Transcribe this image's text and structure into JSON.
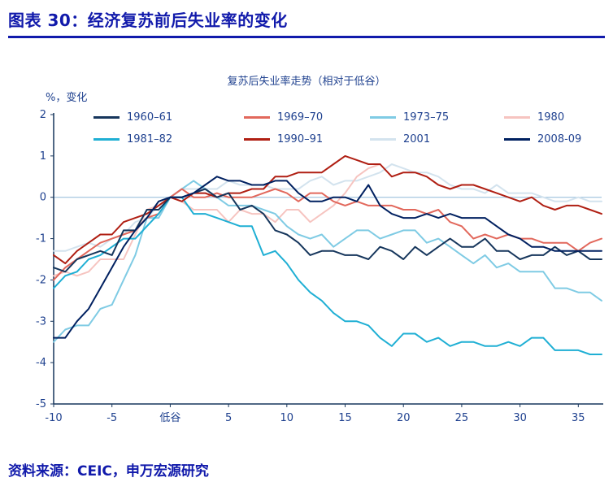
{
  "header": {
    "title": "图表 30：经济复苏前后失业率的变化"
  },
  "footer": {
    "source": "资料来源：CEIC，申万宏源研究"
  },
  "colors": {
    "accent_blue": "#111AAB",
    "axis_text": "#1F418F",
    "axis_line": "#17365D",
    "zero_line": "#8FB8D8"
  },
  "chart_data": {
    "type": "line",
    "title": "复苏后失业率走势（相对于低谷）",
    "ylabel": "%，变化",
    "xlabel": "",
    "xlim": [
      -10,
      37
    ],
    "ylim": [
      -5,
      2
    ],
    "grid": false,
    "legend_position": "top-inside",
    "x_start": -10,
    "x_step": 1,
    "x_ticks": [
      {
        "value": -10,
        "label": "-10"
      },
      {
        "value": -5,
        "label": "-5"
      },
      {
        "value": 0,
        "label": "低谷"
      },
      {
        "value": 5,
        "label": "5"
      },
      {
        "value": 10,
        "label": "10"
      },
      {
        "value": 15,
        "label": "15"
      },
      {
        "value": 20,
        "label": "20"
      },
      {
        "value": 25,
        "label": "25"
      },
      {
        "value": 30,
        "label": "30"
      },
      {
        "value": 35,
        "label": "35"
      }
    ],
    "y_ticks": [
      {
        "value": 2,
        "label": "2"
      },
      {
        "value": 1,
        "label": "1"
      },
      {
        "value": 0,
        "label": "0"
      },
      {
        "value": -1,
        "label": "-1"
      },
      {
        "value": -2,
        "label": "-2"
      },
      {
        "value": -3,
        "label": "-3"
      },
      {
        "value": -4,
        "label": "-4"
      },
      {
        "value": -5,
        "label": "-5"
      }
    ],
    "legend_rows": [
      [
        "1960–61",
        "1969–70",
        "1973–75",
        "1980"
      ],
      [
        "1981–82",
        "1990–91",
        "2001",
        "2008-09"
      ]
    ],
    "series": [
      {
        "name": "1960–61",
        "color": "#16365C",
        "values": [
          -1.7,
          -1.8,
          -1.5,
          -1.4,
          -1.3,
          -1.4,
          -0.8,
          -0.8,
          -0.3,
          -0.3,
          0,
          0,
          0.1,
          0.2,
          0,
          0.1,
          -0.3,
          -0.2,
          -0.4,
          -0.8,
          -0.9,
          -1.1,
          -1.4,
          -1.3,
          -1.3,
          -1.4,
          -1.4,
          -1.5,
          -1.2,
          -1.3,
          -1.5,
          -1.2,
          -1.4,
          -1.2,
          -1.0,
          -1.2,
          -1.2,
          -1.0,
          -1.3,
          -1.3,
          -1.5,
          -1.4,
          -1.4,
          -1.2,
          -1.4,
          -1.3,
          -1.5,
          -1.5
        ]
      },
      {
        "name": "1969–70",
        "color": "#E2685C",
        "values": [
          -2.0,
          -1.7,
          -1.5,
          -1.3,
          -1.1,
          -1.0,
          -0.9,
          -0.8,
          -0.5,
          -0.4,
          0,
          0.2,
          0,
          0,
          0.1,
          0,
          0,
          0,
          0.1,
          0.2,
          0.1,
          -0.1,
          0.1,
          0.1,
          -0.1,
          -0.2,
          -0.1,
          -0.2,
          -0.2,
          -0.2,
          -0.3,
          -0.3,
          -0.4,
          -0.3,
          -0.6,
          -0.7,
          -1.0,
          -0.9,
          -1.0,
          -0.9,
          -1.0,
          -1.0,
          -1.1,
          -1.1,
          -1.1,
          -1.3,
          -1.1,
          -1.0
        ]
      },
      {
        "name": "1973–75",
        "color": "#7FCBE4",
        "values": [
          -3.5,
          -3.2,
          -3.1,
          -3.1,
          -2.7,
          -2.6,
          -2.0,
          -1.4,
          -0.5,
          -0.5,
          0,
          0.2,
          0.4,
          0.2,
          0,
          -0.2,
          -0.2,
          -0.2,
          -0.3,
          -0.4,
          -0.7,
          -0.9,
          -1.0,
          -0.9,
          -1.2,
          -1.0,
          -0.8,
          -0.8,
          -1.0,
          -0.9,
          -0.8,
          -0.8,
          -1.1,
          -1.0,
          -1.2,
          -1.4,
          -1.6,
          -1.4,
          -1.7,
          -1.6,
          -1.8,
          -1.8,
          -1.8,
          -2.2,
          -2.2,
          -2.3,
          -2.3,
          -2.5
        ]
      },
      {
        "name": "1980",
        "color": "#F6C4C0",
        "values": [
          -1.9,
          -1.8,
          -1.9,
          -1.8,
          -1.5,
          -1.5,
          -1.5,
          -0.9,
          -0.3,
          -0.2,
          0,
          -0.1,
          -0.3,
          -0.3,
          -0.3,
          -0.6,
          -0.3,
          -0.4,
          -0.4,
          -0.6,
          -0.3,
          -0.3,
          -0.6,
          -0.4,
          -0.2,
          0.1,
          0.5,
          0.7,
          0.8,
          null,
          null,
          null,
          null,
          null,
          null,
          null,
          null,
          null,
          null,
          null,
          null,
          null,
          null,
          null,
          null,
          null,
          null,
          null
        ]
      },
      {
        "name": "1981–82",
        "color": "#1FAFD4",
        "values": [
          -2.2,
          -1.9,
          -1.8,
          -1.5,
          -1.4,
          -1.2,
          -1.0,
          -1.0,
          -0.7,
          -0.4,
          0,
          0,
          -0.4,
          -0.4,
          -0.5,
          -0.6,
          -0.7,
          -0.7,
          -1.4,
          -1.3,
          -1.6,
          -2.0,
          -2.3,
          -2.5,
          -2.8,
          -3.0,
          -3.0,
          -3.1,
          -3.4,
          -3.6,
          -3.3,
          -3.3,
          -3.5,
          -3.4,
          -3.6,
          -3.5,
          -3.5,
          -3.6,
          -3.6,
          -3.5,
          -3.6,
          -3.4,
          -3.4,
          -3.7,
          -3.7,
          -3.7,
          -3.8,
          -3.8
        ]
      },
      {
        "name": "1990–91",
        "color": "#B01F13",
        "values": [
          -1.4,
          -1.6,
          -1.3,
          -1.1,
          -0.9,
          -0.9,
          -0.6,
          -0.5,
          -0.4,
          -0.2,
          0,
          -0.1,
          0.1,
          0.1,
          0,
          0.1,
          0.1,
          0.2,
          0.2,
          0.5,
          0.5,
          0.6,
          0.6,
          0.6,
          0.8,
          1.0,
          0.9,
          0.8,
          0.8,
          0.5,
          0.6,
          0.6,
          0.5,
          0.3,
          0.2,
          0.3,
          0.3,
          0.2,
          0.1,
          0,
          -0.1,
          0,
          -0.2,
          -0.3,
          -0.2,
          -0.2,
          -0.3,
          -0.4
        ]
      },
      {
        "name": "2001",
        "color": "#D3E3EE",
        "values": [
          -1.3,
          -1.3,
          -1.2,
          -1.1,
          -1.2,
          -1.0,
          -0.9,
          -0.6,
          -0.5,
          -0.2,
          0,
          0.2,
          0.2,
          0.2,
          0.2,
          0.4,
          0.3,
          0.3,
          0.3,
          0.2,
          0.2,
          0.2,
          0.4,
          0.5,
          0.3,
          0.4,
          0.4,
          0.5,
          0.6,
          0.8,
          0.7,
          0.6,
          0.6,
          0.5,
          0.3,
          0.2,
          0.2,
          0.1,
          0.3,
          0.1,
          0.1,
          0.1,
          0,
          -0.1,
          -0.1,
          0,
          -0.1,
          -0.1
        ]
      },
      {
        "name": "2008-09",
        "color": "#002060",
        "values": [
          -3.4,
          -3.4,
          -3.0,
          -2.7,
          -2.2,
          -1.7,
          -1.2,
          -0.8,
          -0.5,
          -0.1,
          0,
          0,
          0.1,
          0.3,
          0.5,
          0.4,
          0.4,
          0.3,
          0.3,
          0.4,
          0.4,
          0.1,
          -0.1,
          -0.1,
          0,
          0,
          -0.1,
          0.3,
          -0.2,
          -0.4,
          -0.5,
          -0.5,
          -0.4,
          -0.5,
          -0.4,
          -0.5,
          -0.5,
          -0.5,
          -0.7,
          -0.9,
          -1.0,
          -1.2,
          -1.2,
          -1.3,
          -1.3,
          -1.3,
          -1.3,
          -1.3
        ]
      }
    ]
  }
}
